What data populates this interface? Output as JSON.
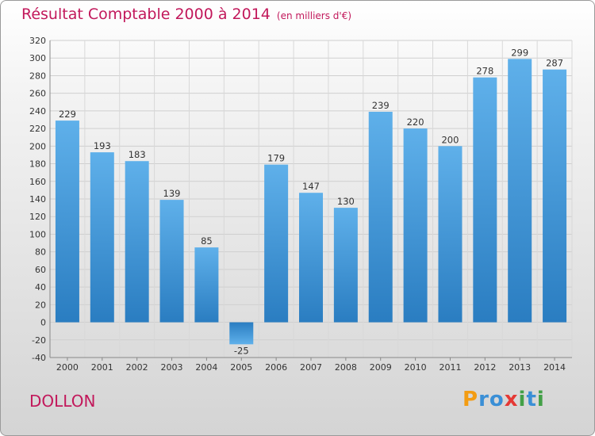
{
  "header": {
    "title": "Résultat Comptable 2000 à 2014",
    "subtitle": "(en milliers d'€)"
  },
  "commune": "DOLLON",
  "logo": {
    "letters": [
      {
        "ch": "P",
        "color": "#f39c12"
      },
      {
        "ch": "r",
        "color": "#3a8fd6"
      },
      {
        "ch": "o",
        "color": "#3a8fd6"
      },
      {
        "ch": "x",
        "color": "#e53935"
      },
      {
        "ch": "i",
        "color": "#43a047"
      },
      {
        "ch": "t",
        "color": "#3a8fd6"
      },
      {
        "ch": "i",
        "color": "#43a047"
      }
    ]
  },
  "chart_data": {
    "type": "bar",
    "title": "Résultat Comptable 2000 à 2014",
    "subtitle": "(en milliers d'€)",
    "xlabel": "",
    "ylabel": "",
    "categories": [
      "2000",
      "2001",
      "2002",
      "2003",
      "2004",
      "2005",
      "2006",
      "2007",
      "2008",
      "2009",
      "2010",
      "2011",
      "2012",
      "2013",
      "2014"
    ],
    "values": [
      229,
      193,
      183,
      139,
      85,
      -25,
      179,
      147,
      130,
      239,
      220,
      200,
      278,
      299,
      287
    ],
    "ylim": [
      -40,
      320
    ],
    "yticks": [
      -40,
      -20,
      0,
      20,
      40,
      60,
      80,
      100,
      120,
      140,
      160,
      180,
      200,
      220,
      240,
      260,
      280,
      300,
      320
    ],
    "grid": true,
    "bar_color": "#4a9ee0",
    "bar_color_dark": "#2b7fc3"
  }
}
